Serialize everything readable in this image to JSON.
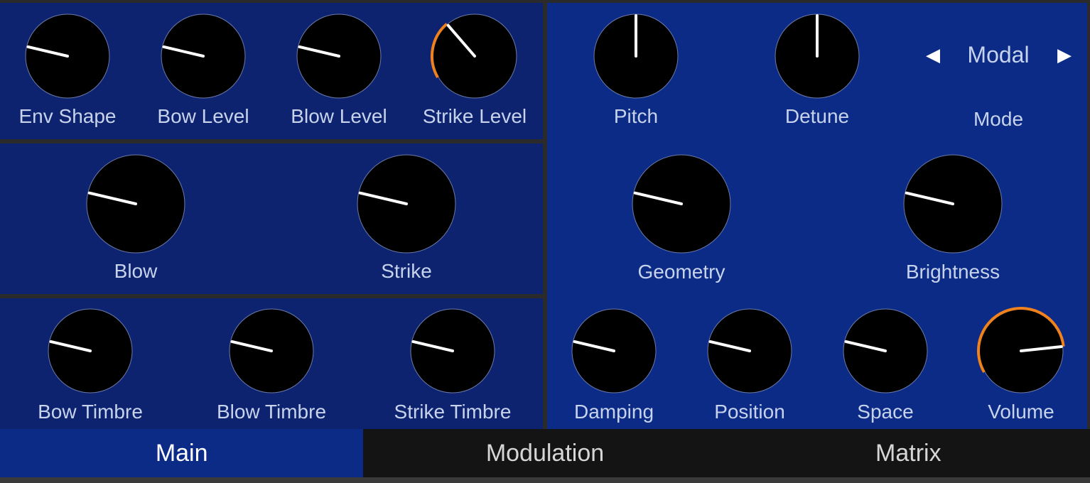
{
  "colors": {
    "panel_left": "#0e2370",
    "panel_right": "#0b2b86",
    "knob_body": "#000000",
    "knob_pointer": "#ffffff",
    "accent_orange": "#f0821e",
    "label": "#c7d3ea"
  },
  "knobs": {
    "env_shape": {
      "label": "Env Shape",
      "value": 0.18
    },
    "bow_level": {
      "label": "Bow Level",
      "value": 0.18
    },
    "blow_level": {
      "label": "Blow Level",
      "value": 0.18
    },
    "strike_level": {
      "label": "Strike Level",
      "value": 0.33
    },
    "blow": {
      "label": "Blow",
      "value": 0.18
    },
    "strike": {
      "label": "Strike",
      "value": 0.18
    },
    "bow_timbre": {
      "label": "Bow Timbre",
      "value": 0.18
    },
    "blow_timbre": {
      "label": "Blow Timbre",
      "value": 0.18
    },
    "strike_timbre": {
      "label": "Strike Timbre",
      "value": 0.18
    },
    "pitch": {
      "label": "Pitch",
      "value": 0.5
    },
    "detune": {
      "label": "Detune",
      "value": 0.5
    },
    "geometry": {
      "label": "Geometry",
      "value": 0.18
    },
    "brightness": {
      "label": "Brightness",
      "value": 0.18
    },
    "damping": {
      "label": "Damping",
      "value": 0.18
    },
    "position": {
      "label": "Position",
      "value": 0.18
    },
    "space": {
      "label": "Space",
      "value": 0.18
    },
    "volume": {
      "label": "Volume",
      "value": 0.85
    }
  },
  "mode": {
    "label": "Mode",
    "value": "Modal",
    "prev_icon": "triangle-left-icon",
    "next_icon": "triangle-right-icon"
  },
  "tabs": [
    {
      "label": "Main",
      "active": true
    },
    {
      "label": "Modulation",
      "active": false
    },
    {
      "label": "Matrix",
      "active": false
    }
  ]
}
